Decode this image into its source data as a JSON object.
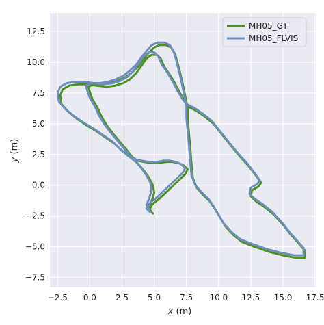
{
  "chart_data": {
    "type": "line",
    "xlabel_var": "x",
    "xlabel_unit": " (m)",
    "ylabel_var": "y",
    "ylabel_unit": " (m)",
    "xlim": [
      -3.1,
      17.6
    ],
    "ylim": [
      -8.3,
      14.0
    ],
    "x_ticks": [
      -2.5,
      0.0,
      2.5,
      5.0,
      7.5,
      10.0,
      12.5,
      15.0,
      17.5
    ],
    "x_tick_labels": [
      "−2.5",
      "0.0",
      "2.5",
      "5.0",
      "7.5",
      "10.0",
      "12.5",
      "15.0",
      "17.5"
    ],
    "y_ticks": [
      -7.5,
      -5.0,
      -2.5,
      0.0,
      2.5,
      5.0,
      7.5,
      10.0,
      12.5
    ],
    "y_tick_labels": [
      "−7.5",
      "−5.0",
      "−2.5",
      "0.0",
      "2.5",
      "5.0",
      "7.5",
      "10.0",
      "12.5"
    ],
    "grid": true,
    "legend_position": "top-right",
    "background": "#eaeaf2",
    "series": [
      {
        "name": "MH05_GT",
        "color": "#4d9221",
        "points": [
          [
            4.9,
            -2.3
          ],
          [
            4.6,
            -2.0
          ],
          [
            4.9,
            -1.5
          ],
          [
            5.4,
            -1.1
          ],
          [
            5.9,
            -0.6
          ],
          [
            6.4,
            -0.1
          ],
          [
            6.9,
            0.4
          ],
          [
            7.4,
            0.9
          ],
          [
            7.6,
            1.3
          ],
          [
            7.3,
            1.6
          ],
          [
            6.9,
            1.8
          ],
          [
            6.4,
            1.9
          ],
          [
            5.9,
            1.9
          ],
          [
            5.4,
            1.8
          ],
          [
            4.8,
            1.8
          ],
          [
            4.2,
            1.9
          ],
          [
            3.7,
            2.0
          ],
          [
            3.3,
            2.3
          ],
          [
            3.0,
            2.7
          ],
          [
            2.6,
            3.2
          ],
          [
            2.2,
            3.7
          ],
          [
            1.8,
            4.2
          ],
          [
            1.3,
            4.9
          ],
          [
            0.9,
            5.6
          ],
          [
            0.6,
            6.3
          ],
          [
            0.2,
            7.0
          ],
          [
            0.0,
            7.6
          ],
          [
            -0.1,
            8.0
          ],
          [
            0.3,
            8.2
          ],
          [
            1.0,
            8.2
          ],
          [
            1.6,
            8.3
          ],
          [
            2.2,
            8.5
          ],
          [
            2.8,
            8.8
          ],
          [
            3.3,
            9.2
          ],
          [
            3.8,
            9.7
          ],
          [
            4.2,
            10.3
          ],
          [
            4.6,
            10.8
          ],
          [
            5.0,
            11.2
          ],
          [
            5.4,
            11.4
          ],
          [
            5.9,
            11.4
          ],
          [
            6.3,
            11.2
          ],
          [
            6.6,
            10.7
          ],
          [
            6.8,
            10.0
          ],
          [
            7.0,
            9.2
          ],
          [
            7.2,
            8.3
          ],
          [
            7.4,
            7.3
          ],
          [
            7.6,
            6.3
          ],
          [
            7.6,
            5.3
          ],
          [
            7.7,
            4.2
          ],
          [
            7.8,
            3.0
          ],
          [
            7.9,
            1.7
          ],
          [
            8.0,
            0.6
          ],
          [
            8.3,
            -0.2
          ],
          [
            8.8,
            -0.8
          ],
          [
            9.3,
            -1.3
          ],
          [
            9.7,
            -1.9
          ],
          [
            10.1,
            -2.6
          ],
          [
            10.5,
            -3.3
          ],
          [
            11.1,
            -4.0
          ],
          [
            11.8,
            -4.6
          ],
          [
            12.8,
            -5.0
          ],
          [
            13.9,
            -5.4
          ],
          [
            15.0,
            -5.7
          ],
          [
            16.0,
            -5.9
          ],
          [
            16.7,
            -5.9
          ],
          [
            16.7,
            -5.3
          ],
          [
            16.2,
            -4.7
          ],
          [
            15.6,
            -4.0
          ],
          [
            15.0,
            -3.2
          ],
          [
            14.3,
            -2.4
          ],
          [
            13.6,
            -1.8
          ],
          [
            12.9,
            -1.3
          ],
          [
            12.5,
            -0.9
          ],
          [
            12.6,
            -0.4
          ],
          [
            13.1,
            -0.1
          ],
          [
            13.3,
            0.2
          ],
          [
            12.9,
            0.8
          ],
          [
            12.3,
            1.6
          ],
          [
            11.6,
            2.4
          ],
          [
            10.9,
            3.3
          ],
          [
            10.2,
            4.2
          ],
          [
            9.6,
            5.0
          ],
          [
            8.9,
            5.6
          ],
          [
            8.2,
            6.1
          ],
          [
            7.6,
            6.4
          ],
          [
            7.4,
            6.8
          ],
          [
            7.0,
            7.5
          ],
          [
            6.6,
            8.3
          ],
          [
            6.2,
            9.0
          ],
          [
            5.8,
            9.6
          ],
          [
            5.5,
            10.3
          ],
          [
            5.2,
            10.6
          ],
          [
            4.8,
            10.6
          ],
          [
            4.4,
            10.3
          ],
          [
            4.0,
            9.7
          ],
          [
            3.6,
            9.1
          ],
          [
            3.1,
            8.6
          ],
          [
            2.6,
            8.3
          ],
          [
            2.0,
            8.1
          ],
          [
            1.3,
            8.0
          ],
          [
            0.5,
            8.1
          ],
          [
            -0.2,
            8.2
          ],
          [
            -0.9,
            8.2
          ],
          [
            -1.6,
            8.1
          ],
          [
            -2.1,
            7.8
          ],
          [
            -2.3,
            7.3
          ],
          [
            -2.2,
            6.6
          ],
          [
            -1.7,
            6.0
          ],
          [
            -1.0,
            5.4
          ],
          [
            -0.3,
            4.9
          ],
          [
            0.5,
            4.4
          ],
          [
            1.2,
            3.9
          ],
          [
            1.9,
            3.4
          ],
          [
            2.5,
            2.8
          ],
          [
            3.1,
            2.3
          ],
          [
            3.7,
            1.8
          ],
          [
            4.2,
            1.2
          ],
          [
            4.6,
            0.6
          ],
          [
            4.9,
            0.0
          ],
          [
            5.0,
            -0.6
          ],
          [
            4.8,
            -1.3
          ],
          [
            4.6,
            -1.8
          ],
          [
            4.8,
            -2.2
          ]
        ]
      },
      {
        "name": "MH05_FLVIS",
        "color": "#6c8ebf",
        "points": [
          [
            4.7,
            -2.2
          ],
          [
            4.4,
            -1.9
          ],
          [
            4.7,
            -1.4
          ],
          [
            5.2,
            -1.0
          ],
          [
            5.7,
            -0.5
          ],
          [
            6.2,
            0.0
          ],
          [
            6.7,
            0.5
          ],
          [
            7.2,
            1.0
          ],
          [
            7.4,
            1.4
          ],
          [
            7.1,
            1.7
          ],
          [
            6.7,
            1.9
          ],
          [
            6.2,
            2.0
          ],
          [
            5.7,
            2.0
          ],
          [
            5.2,
            1.9
          ],
          [
            4.6,
            1.9
          ],
          [
            4.0,
            2.0
          ],
          [
            3.5,
            2.1
          ],
          [
            3.1,
            2.4
          ],
          [
            2.8,
            2.8
          ],
          [
            2.4,
            3.3
          ],
          [
            2.0,
            3.8
          ],
          [
            1.6,
            4.3
          ],
          [
            1.1,
            5.0
          ],
          [
            0.7,
            5.7
          ],
          [
            0.4,
            6.4
          ],
          [
            0.0,
            7.1
          ],
          [
            -0.2,
            7.7
          ],
          [
            -0.3,
            8.1
          ],
          [
            0.1,
            8.3
          ],
          [
            0.8,
            8.3
          ],
          [
            1.4,
            8.4
          ],
          [
            2.0,
            8.6
          ],
          [
            2.6,
            8.9
          ],
          [
            3.1,
            9.3
          ],
          [
            3.6,
            9.8
          ],
          [
            4.0,
            10.4
          ],
          [
            4.4,
            10.9
          ],
          [
            4.8,
            11.4
          ],
          [
            5.3,
            11.6
          ],
          [
            5.8,
            11.6
          ],
          [
            6.2,
            11.4
          ],
          [
            6.5,
            10.9
          ],
          [
            6.7,
            10.2
          ],
          [
            6.9,
            9.4
          ],
          [
            7.1,
            8.5
          ],
          [
            7.3,
            7.5
          ],
          [
            7.5,
            6.5
          ],
          [
            7.5,
            5.5
          ],
          [
            7.6,
            4.4
          ],
          [
            7.7,
            3.2
          ],
          [
            7.8,
            1.9
          ],
          [
            7.9,
            0.8
          ],
          [
            8.2,
            0.0
          ],
          [
            8.7,
            -0.6
          ],
          [
            9.2,
            -1.1
          ],
          [
            9.6,
            -1.7
          ],
          [
            10.0,
            -2.4
          ],
          [
            10.4,
            -3.1
          ],
          [
            11.0,
            -3.8
          ],
          [
            11.7,
            -4.4
          ],
          [
            12.7,
            -4.8
          ],
          [
            13.8,
            -5.2
          ],
          [
            14.9,
            -5.5
          ],
          [
            15.9,
            -5.7
          ],
          [
            16.6,
            -5.7
          ],
          [
            16.6,
            -5.1
          ],
          [
            16.1,
            -4.5
          ],
          [
            15.5,
            -3.8
          ],
          [
            14.9,
            -3.0
          ],
          [
            14.2,
            -2.2
          ],
          [
            13.5,
            -1.6
          ],
          [
            12.8,
            -1.1
          ],
          [
            12.4,
            -0.7
          ],
          [
            12.5,
            -0.2
          ],
          [
            13.0,
            0.1
          ],
          [
            13.2,
            0.4
          ],
          [
            12.8,
            1.0
          ],
          [
            12.2,
            1.8
          ],
          [
            11.5,
            2.6
          ],
          [
            10.8,
            3.5
          ],
          [
            10.1,
            4.4
          ],
          [
            9.5,
            5.2
          ],
          [
            8.8,
            5.8
          ],
          [
            8.1,
            6.3
          ],
          [
            7.5,
            6.6
          ],
          [
            7.2,
            7.0
          ],
          [
            6.8,
            7.7
          ],
          [
            6.4,
            8.5
          ],
          [
            6.0,
            9.2
          ],
          [
            5.6,
            9.8
          ],
          [
            5.3,
            10.5
          ],
          [
            5.0,
            10.8
          ],
          [
            4.6,
            10.8
          ],
          [
            4.2,
            10.5
          ],
          [
            3.8,
            9.9
          ],
          [
            3.4,
            9.3
          ],
          [
            2.9,
            8.8
          ],
          [
            2.4,
            8.5
          ],
          [
            1.8,
            8.3
          ],
          [
            1.1,
            8.2
          ],
          [
            0.3,
            8.3
          ],
          [
            -0.4,
            8.4
          ],
          [
            -1.1,
            8.4
          ],
          [
            -1.8,
            8.3
          ],
          [
            -2.3,
            8.0
          ],
          [
            -2.5,
            7.5
          ],
          [
            -2.4,
            6.8
          ],
          [
            -1.9,
            6.2
          ],
          [
            -1.2,
            5.6
          ],
          [
            -0.5,
            5.1
          ],
          [
            0.3,
            4.6
          ],
          [
            1.0,
            4.1
          ],
          [
            1.7,
            3.6
          ],
          [
            2.3,
            3.0
          ],
          [
            2.9,
            2.5
          ],
          [
            3.5,
            2.0
          ],
          [
            4.0,
            1.4
          ],
          [
            4.4,
            0.8
          ],
          [
            4.7,
            0.2
          ],
          [
            4.8,
            -0.4
          ],
          [
            4.6,
            -1.1
          ],
          [
            4.4,
            -1.6
          ],
          [
            4.6,
            -2.0
          ]
        ]
      }
    ]
  }
}
